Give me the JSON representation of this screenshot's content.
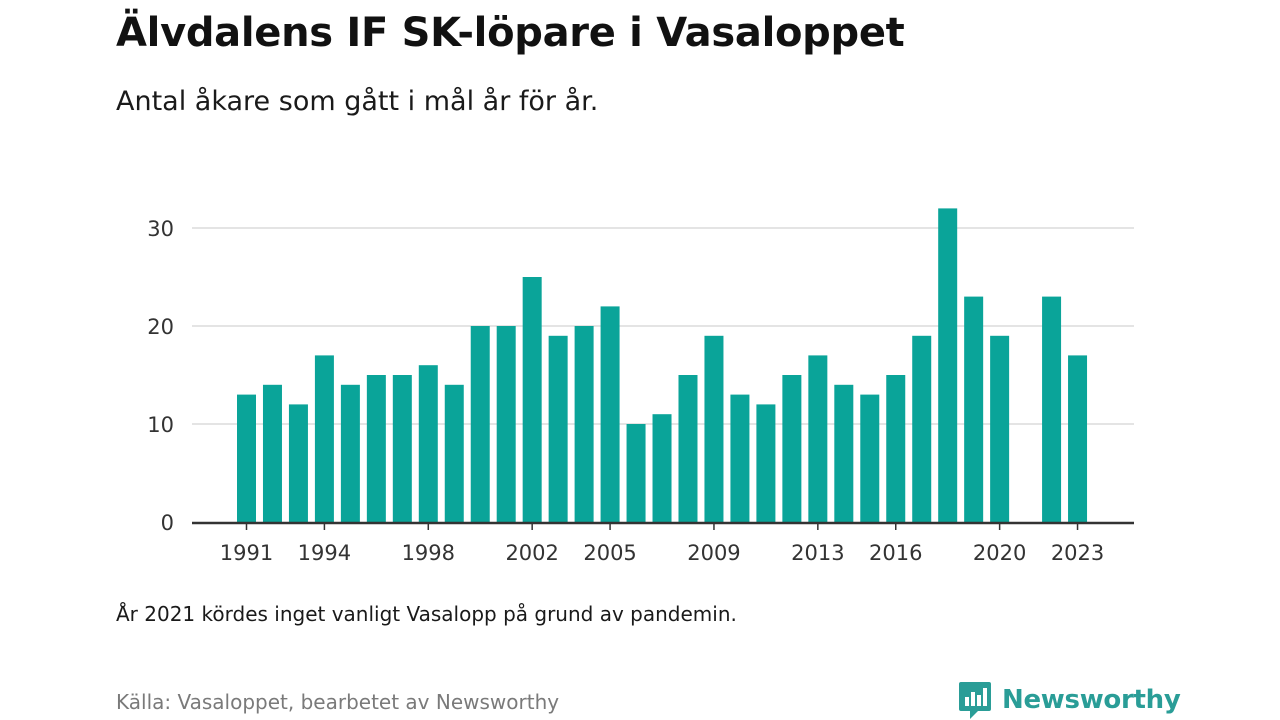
{
  "header": {
    "title": "Älvdalens IF SK-löpare i Vasaloppet",
    "subtitle": "Antal åkare som gått i mål år för år."
  },
  "footer": {
    "note": "År 2021 kördes inget vanligt Vasalopp på grund av pandemin.",
    "source": "Källa: Vasaloppet, bearbetet av Newsworthy",
    "logo_text": "Newsworthy"
  },
  "colors": {
    "bar": "#0aa499",
    "gridline": "#dcdcdc",
    "axis": "#333333",
    "logo": "#2a9d97"
  },
  "chart_data": {
    "type": "bar",
    "title": "Älvdalens IF SK-löpare i Vasaloppet",
    "subtitle": "Antal åkare som gått i mål år för år.",
    "xlabel": "",
    "ylabel": "",
    "ylim": [
      0,
      34
    ],
    "yticks": [
      0,
      10,
      20,
      30
    ],
    "xticks": [
      1991,
      1994,
      1998,
      2002,
      2005,
      2009,
      2013,
      2016,
      2020,
      2023
    ],
    "grid": true,
    "legend": "none",
    "categories": [
      1991,
      1992,
      1993,
      1994,
      1995,
      1996,
      1997,
      1998,
      1999,
      2000,
      2001,
      2002,
      2003,
      2004,
      2005,
      2006,
      2007,
      2008,
      2009,
      2010,
      2011,
      2012,
      2013,
      2014,
      2015,
      2016,
      2017,
      2018,
      2019,
      2020,
      2021,
      2022,
      2023
    ],
    "values": [
      13,
      14,
      12,
      17,
      14,
      15,
      15,
      16,
      14,
      20,
      20,
      25,
      19,
      20,
      22,
      10,
      11,
      15,
      19,
      13,
      12,
      15,
      17,
      14,
      13,
      15,
      19,
      32,
      23,
      19,
      null,
      23,
      17
    ]
  }
}
